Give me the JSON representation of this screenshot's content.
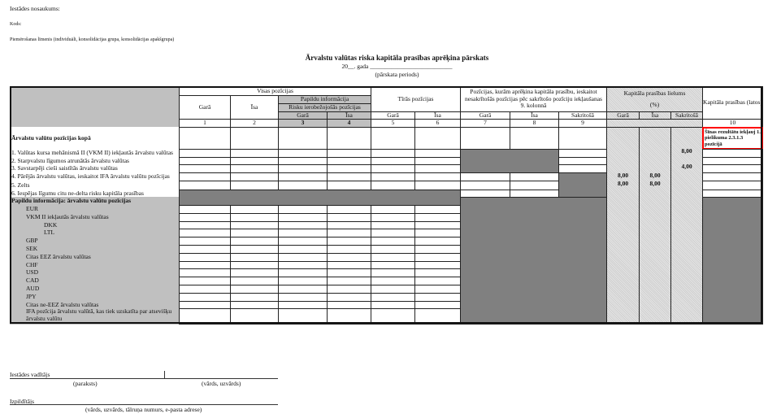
{
  "header": {
    "institution": "Iestādes nosaukums:",
    "code": "Kods:",
    "level": "Piemērošanas līmenis (individuāli, konsolidācijas grupa, konsolidācijas apakšgrupa)",
    "title": "Ārvalstu valūtas riska kapitāla prasības aprēķina pārskats",
    "period_line": "20__. gada ___________________________",
    "period_caption": "(pārskata periods)"
  },
  "table": {
    "h_all": "Visas pozīcijas",
    "h_long": "Garā",
    "h_short": "Īsa",
    "h_matched": "Sakritošā",
    "h_extra": "Papildu informācija",
    "h_hedge": "Risku ierobežojošās pozīcijas",
    "h_net": "Tīrās pozīcijas",
    "h_calc": "Pozīcijas, kurām aprēķina kapitāla prasību, ieskaitot nesakrītošās pozīcijas pēc sakrītošo pozīciju iekļaušanas 9. kolonnā",
    "h_rate": "Kapitāla prasības lielums",
    "h_rate_unit": "(%)",
    "h_req": "Kapitāla prasības (latos)",
    "col_numbers": [
      "1",
      "2",
      "3",
      "4",
      "5",
      "6",
      "7",
      "8",
      "9",
      "10"
    ],
    "total_label": "Ārvalstu valūtu pozīcijas kopā",
    "total_note": "Šīnas rezultātu iekļauj 1. pielikuma 2.3.1.3 pozīcijā",
    "rows": [
      "1. Valūtas kursa mehānismā II (VKM II) iekļautās ārvalstu valūtas",
      "2. Starpvalstu līgumos atrunātās ārvalstu valūtas",
      "3. Savstarpēji cieši saistītās ārvalstu valūtas",
      "4. Pārējās ārvalstu valūtas, ieskaitot IFA ārvalstu valūtu pozīcijas",
      "5. Zelts",
      "6. Iespējas līgumu citu ne-delta risku kapitāla prasības"
    ],
    "values": {
      "r1_matched": "8,00",
      "r3_matched": "4,00",
      "r4_long": "8,00",
      "r4_short": "8,00",
      "r5_long": "8,00",
      "r5_short": "8,00"
    },
    "extra_label": "Papildu informācija: ārvalstu valūtu pozīcijas",
    "extra_rows": [
      "EUR",
      "VKM II iekļautās ārvalstu valūtas",
      "DKK",
      "LTL",
      "GBP",
      "SEK",
      "Citas EEZ ārvalstu valūtas",
      "CHF",
      "USD",
      "CAD",
      "AUD",
      "JPY",
      "Citas ne-EEZ ārvalstu valūtas",
      "IFA pozīcija ārvalstu valūtā, kas tiek uzskatīta par atsevišķu ārvalstu valūtu"
    ]
  },
  "footer": {
    "head": "Iestādes vadītājs",
    "signature": "(paraksts)",
    "name": "(vārds, uzvārds)",
    "executor": "Izpildītājs",
    "executor_caption": "(vārds, uzvārds, tālruņa numurs, e-pasta adrese)"
  },
  "colors": {
    "dark": "#808080",
    "light": "#c0c0c0",
    "highlight": "#ff0000"
  }
}
